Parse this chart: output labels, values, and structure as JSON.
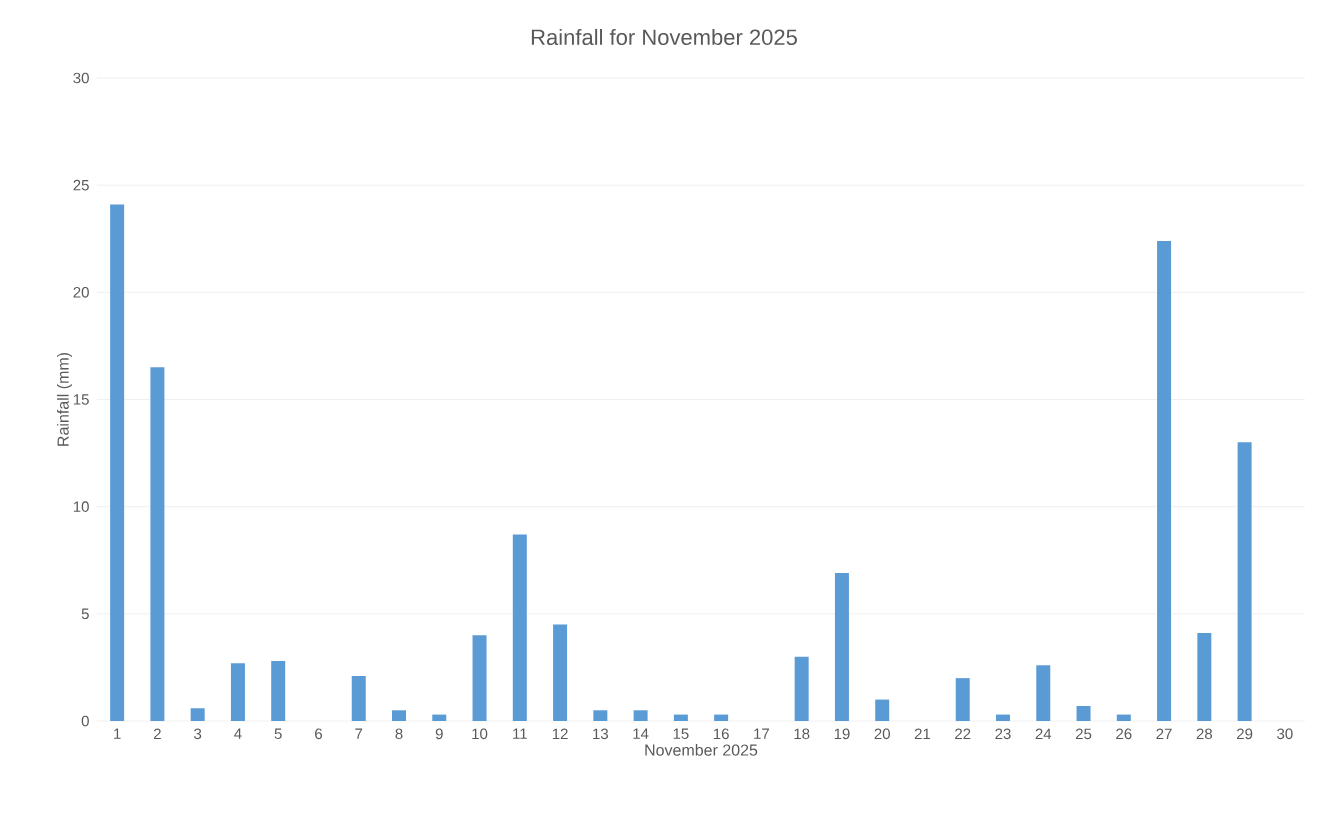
{
  "chart_data": {
    "type": "bar",
    "title": "Rainfall for November 2025",
    "xlabel": "November 2025",
    "ylabel": "Rainfall (mm)",
    "categories": [
      "1",
      "2",
      "3",
      "4",
      "5",
      "6",
      "7",
      "8",
      "9",
      "10",
      "11",
      "12",
      "13",
      "14",
      "15",
      "16",
      "17",
      "18",
      "19",
      "20",
      "21",
      "22",
      "23",
      "24",
      "25",
      "26",
      "27",
      "28",
      "29",
      "30"
    ],
    "values": [
      24.1,
      16.5,
      0.6,
      2.7,
      2.8,
      0,
      2.1,
      0.5,
      0.3,
      4.0,
      8.7,
      4.5,
      0.5,
      0.5,
      0.3,
      0.3,
      0,
      3.0,
      6.9,
      1.0,
      0,
      2.0,
      0.3,
      2.6,
      0.7,
      0.3,
      22.4,
      4.1,
      13.0,
      0
    ],
    "color": "#5b9bd5",
    "ylim": [
      0,
      30
    ],
    "yticks": [
      0,
      5,
      10,
      15,
      20,
      25,
      30
    ],
    "grid": "y"
  }
}
